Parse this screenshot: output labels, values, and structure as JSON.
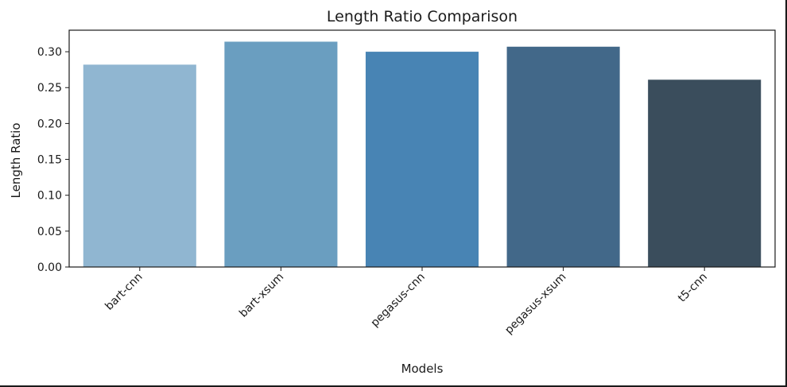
{
  "chart_data": {
    "type": "bar",
    "title": "Length Ratio Comparison",
    "xlabel": "Models",
    "ylabel": "Length Ratio",
    "categories": [
      "bart-cnn",
      "bart-xsum",
      "pegasus-cnn",
      "pegasus-xsum",
      "t5-cnn"
    ],
    "values": [
      0.282,
      0.314,
      0.3,
      0.307,
      0.261
    ],
    "colors": [
      "#90b6d1",
      "#6a9ec0",
      "#4884b4",
      "#426889",
      "#3a4d5c"
    ],
    "ylim": [
      0,
      0.33
    ],
    "yticks": [
      0.0,
      0.05,
      0.1,
      0.15,
      0.2,
      0.25,
      0.3
    ],
    "ytick_labels": [
      "0.00",
      "0.05",
      "0.10",
      "0.15",
      "0.20",
      "0.25",
      "0.30"
    ],
    "grid": false,
    "legend": "none"
  }
}
